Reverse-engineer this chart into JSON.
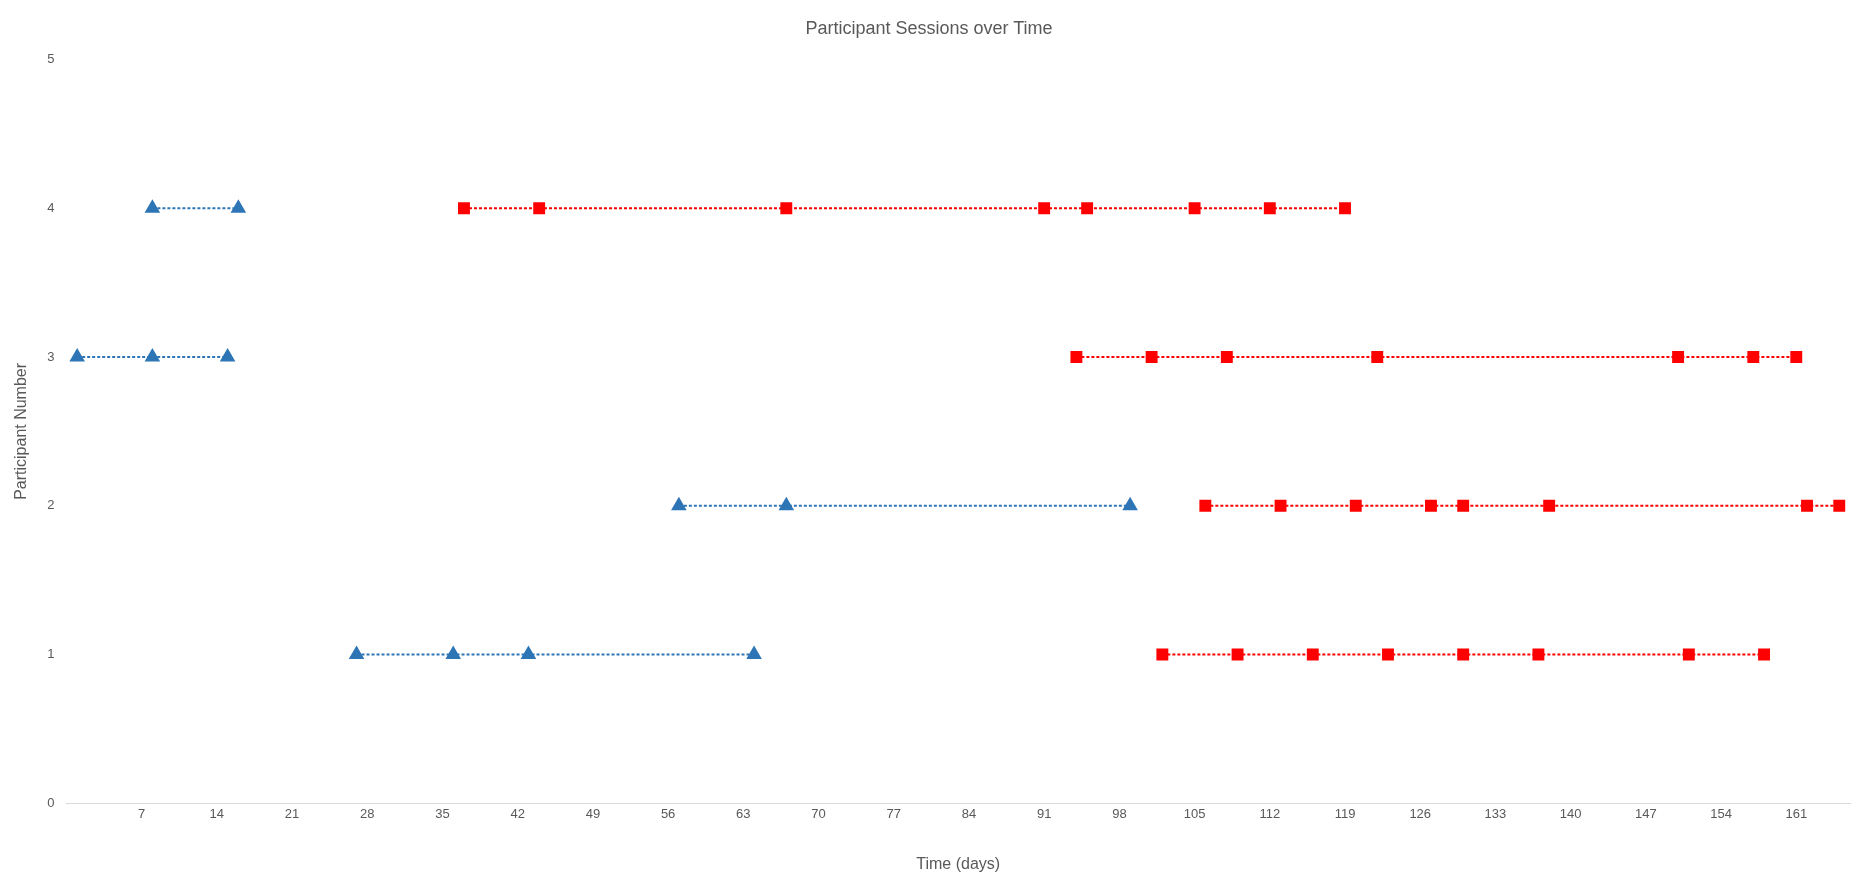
{
  "chart_data": {
    "type": "line",
    "title": "Participant Sessions over Time",
    "xlabel": "Time (days)",
    "ylabel": "Participant Number",
    "xlim": [
      0,
      166
    ],
    "xticks": [
      7,
      14,
      21,
      28,
      35,
      42,
      49,
      56,
      63,
      70,
      77,
      84,
      91,
      98,
      105,
      112,
      119,
      126,
      133,
      140,
      147,
      154,
      161
    ],
    "ylim": [
      0,
      5
    ],
    "yticks": [
      0,
      1,
      2,
      3,
      4,
      5
    ],
    "grid": false,
    "legend": false,
    "line_style": "dotted",
    "series": [
      {
        "color": "#2e75b6",
        "marker": "triangle",
        "x": [
          8,
          16
        ],
        "values": [
          4,
          4
        ]
      },
      {
        "color": "#2e75b6",
        "marker": "triangle",
        "x": [
          1,
          8,
          15
        ],
        "values": [
          3,
          3,
          3
        ]
      },
      {
        "color": "#2e75b6",
        "marker": "triangle",
        "x": [
          57,
          67,
          99
        ],
        "values": [
          2,
          2,
          2
        ]
      },
      {
        "color": "#2e75b6",
        "marker": "triangle",
        "x": [
          27,
          36,
          43,
          64
        ],
        "values": [
          1,
          1,
          1,
          1
        ]
      },
      {
        "color": "#ff0000",
        "marker": "square",
        "x": [
          37,
          44,
          67,
          91,
          95,
          105,
          112,
          119
        ],
        "values": [
          4,
          4,
          4,
          4,
          4,
          4,
          4,
          4
        ]
      },
      {
        "color": "#ff0000",
        "marker": "square",
        "x": [
          94,
          101,
          108,
          122,
          150,
          157,
          161
        ],
        "values": [
          3,
          3,
          3,
          3,
          3,
          3,
          3
        ]
      },
      {
        "color": "#ff0000",
        "marker": "square",
        "x": [
          106,
          113,
          120,
          127,
          130,
          138,
          162,
          165
        ],
        "values": [
          2,
          2,
          2,
          2,
          2,
          2,
          2,
          2
        ]
      },
      {
        "color": "#ff0000",
        "marker": "square",
        "x": [
          102,
          109,
          116,
          123,
          130,
          137,
          151,
          158
        ],
        "values": [
          1,
          1,
          1,
          1,
          1,
          1,
          1,
          1
        ]
      }
    ]
  }
}
